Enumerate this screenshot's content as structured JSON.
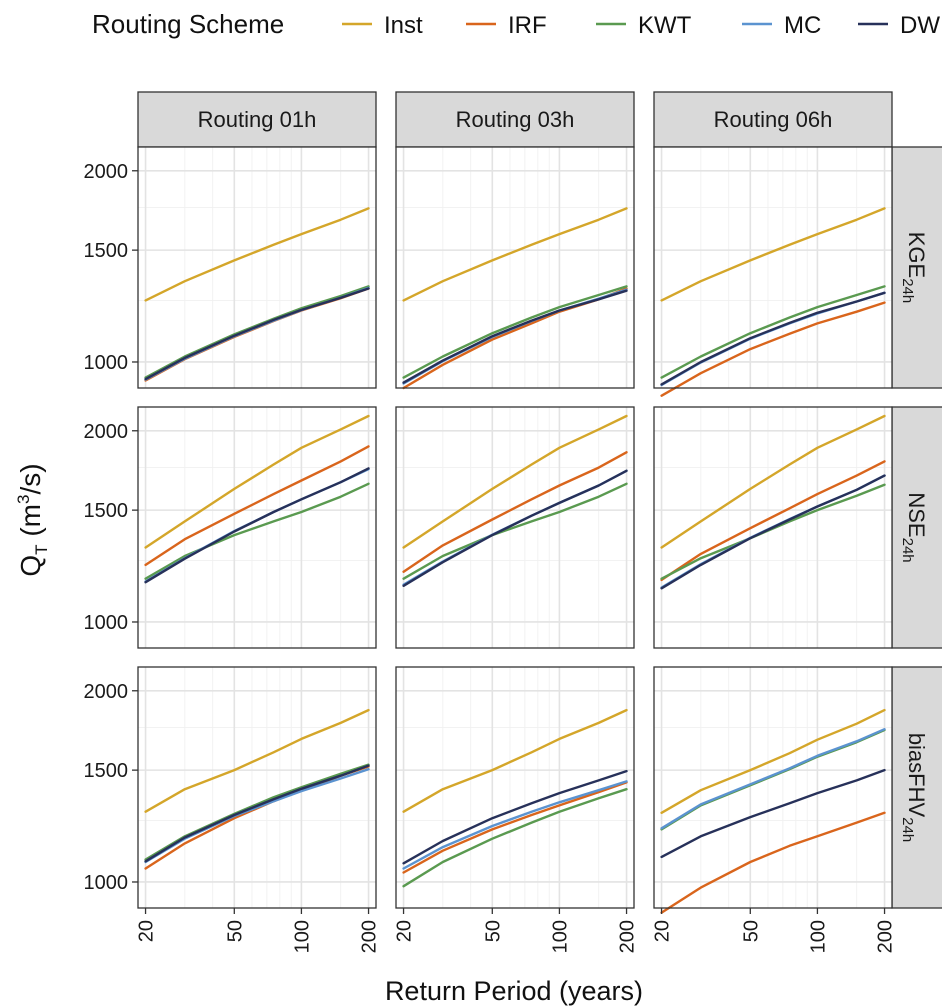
{
  "chart_data": {
    "type": "line",
    "legend": {
      "title": "Routing Scheme",
      "placement": "top",
      "entries": [
        {
          "name": "Inst",
          "color": "#D4A62A"
        },
        {
          "name": "IRF",
          "color": "#D9651C"
        },
        {
          "name": "KWT",
          "color": "#5A9A50"
        },
        {
          "name": "MC",
          "color": "#5B93D0"
        },
        {
          "name": "DW",
          "color": "#27315A"
        }
      ]
    },
    "xlabel": "Return Period (years)",
    "ylabel": "Q_T (m³/s)",
    "ylabel_main": "Q",
    "ylabel_sub": "T",
    "ylabel_rest": " (m",
    "ylabel_sup": "3",
    "ylabel_end": "/s)",
    "x_scale": "log",
    "y_scale": "log",
    "x_ticks": [
      20,
      50,
      100,
      200
    ],
    "x_tick_labels": [
      "20",
      "50",
      "100",
      "200"
    ],
    "y_ticks": [
      1000,
      1500,
      2000
    ],
    "y_tick_labels": [
      "1000",
      "1500",
      "2000"
    ],
    "xlim": [
      18.5,
      216
    ],
    "rows_ylim": [
      [
        910,
        2180
      ],
      [
        910,
        2180
      ],
      [
        910,
        2180
      ]
    ],
    "grid": true,
    "x_points": [
      20,
      30,
      50,
      75,
      100,
      150,
      200
    ],
    "columns": [
      "Routing 01h",
      "Routing 03h",
      "Routing 06h"
    ],
    "rows": [
      {
        "main": "KGE",
        "sub": "24h"
      },
      {
        "main": "NSE",
        "sub": "24h"
      },
      {
        "main": "biasFHV",
        "sub": "24h"
      }
    ],
    "panels": [
      {
        "row": 0,
        "col": 0,
        "series": [
          {
            "name": "Inst",
            "values": [
              1250,
              1340,
              1445,
              1530,
              1590,
              1675,
              1745
            ]
          },
          {
            "name": "IRF",
            "values": [
              935,
              1010,
              1095,
              1160,
              1205,
              1260,
              1305
            ]
          },
          {
            "name": "KWT",
            "values": [
              945,
              1020,
              1105,
              1170,
              1215,
              1270,
              1315
            ]
          },
          {
            "name": "MC",
            "values": [
              938,
              1012,
              1098,
              1162,
              1207,
              1263,
              1308
            ]
          },
          {
            "name": "DW",
            "values": [
              940,
              1015,
              1100,
              1165,
              1208,
              1262,
              1305
            ]
          }
        ]
      },
      {
        "row": 0,
        "col": 1,
        "series": [
          {
            "name": "Inst",
            "values": [
              1250,
              1340,
              1445,
              1530,
              1590,
              1675,
              1745
            ]
          },
          {
            "name": "IRF",
            "values": [
              910,
              990,
              1085,
              1150,
              1200,
              1255,
              1305
            ]
          },
          {
            "name": "KWT",
            "values": [
              945,
              1020,
              1110,
              1175,
              1220,
              1275,
              1315
            ]
          },
          {
            "name": "MC",
            "values": [
              925,
              1003,
              1095,
              1160,
              1205,
              1258,
              1300
            ]
          },
          {
            "name": "DW",
            "values": [
              928,
              1005,
              1098,
              1162,
              1205,
              1255,
              1295
            ]
          }
        ]
      },
      {
        "row": 0,
        "col": 2,
        "series": [
          {
            "name": "Inst",
            "values": [
              1250,
              1340,
              1445,
              1530,
              1590,
              1675,
              1745
            ]
          },
          {
            "name": "IRF",
            "values": [
              885,
              960,
              1048,
              1108,
              1150,
              1200,
              1240
            ]
          },
          {
            "name": "KWT",
            "values": [
              945,
              1020,
              1110,
              1175,
              1220,
              1275,
              1315
            ]
          },
          {
            "name": "MC",
            "values": [
              920,
              998,
              1088,
              1150,
              1192,
              1245,
              1285
            ]
          },
          {
            "name": "DW",
            "values": [
              922,
              1000,
              1090,
              1152,
              1195,
              1245,
              1285
            ]
          }
        ]
      },
      {
        "row": 1,
        "col": 0,
        "series": [
          {
            "name": "Inst",
            "values": [
              1310,
              1440,
              1620,
              1770,
              1880,
              2010,
              2110
            ]
          },
          {
            "name": "IRF",
            "values": [
              1230,
              1350,
              1480,
              1590,
              1670,
              1790,
              1890
            ]
          },
          {
            "name": "KWT",
            "values": [
              1170,
              1270,
              1370,
              1440,
              1490,
              1575,
              1650
            ]
          },
          {
            "name": "MC",
            "values": [
              1158,
              1260,
              1390,
              1490,
              1560,
              1660,
              1740
            ]
          },
          {
            "name": "DW",
            "values": [
              1155,
              1258,
              1388,
              1490,
              1560,
              1660,
              1745
            ]
          }
        ]
      },
      {
        "row": 1,
        "col": 1,
        "series": [
          {
            "name": "Inst",
            "values": [
              1310,
              1440,
              1620,
              1770,
              1880,
              2010,
              2110
            ]
          },
          {
            "name": "IRF",
            "values": [
              1200,
              1320,
              1450,
              1560,
              1640,
              1750,
              1850
            ]
          },
          {
            "name": "KWT",
            "values": [
              1170,
              1270,
              1370,
              1440,
              1490,
              1575,
              1650
            ]
          },
          {
            "name": "MC",
            "values": [
              1145,
              1245,
              1372,
              1470,
              1540,
              1640,
              1730
            ]
          },
          {
            "name": "DW",
            "values": [
              1140,
              1242,
              1370,
              1470,
              1540,
              1640,
              1730
            ]
          }
        ]
      },
      {
        "row": 1,
        "col": 2,
        "series": [
          {
            "name": "Inst",
            "values": [
              1310,
              1440,
              1620,
              1770,
              1880,
              2010,
              2110
            ]
          },
          {
            "name": "IRF",
            "values": [
              1165,
              1280,
              1405,
              1510,
              1590,
              1700,
              1790
            ]
          },
          {
            "name": "KWT",
            "values": [
              1170,
              1260,
              1355,
              1440,
              1500,
              1580,
              1645
            ]
          },
          {
            "name": "MC",
            "values": [
              1133,
              1233,
              1357,
              1452,
              1520,
              1615,
              1700
            ]
          },
          {
            "name": "DW",
            "values": [
              1130,
              1230,
              1355,
              1450,
              1520,
              1615,
              1700
            ]
          }
        ]
      },
      {
        "row": 2,
        "col": 0,
        "series": [
          {
            "name": "Inst",
            "values": [
              1290,
              1400,
              1500,
              1600,
              1680,
              1780,
              1865
            ]
          },
          {
            "name": "IRF",
            "values": [
              1050,
              1150,
              1260,
              1340,
              1395,
              1470,
              1520
            ]
          },
          {
            "name": "KWT",
            "values": [
              1085,
              1180,
              1280,
              1360,
              1410,
              1480,
              1530
            ]
          },
          {
            "name": "MC",
            "values": [
              1075,
              1170,
              1270,
              1340,
              1390,
              1455,
              1505
            ]
          },
          {
            "name": "DW",
            "values": [
              1078,
              1175,
              1275,
              1350,
              1402,
              1470,
              1525
            ]
          }
        ]
      },
      {
        "row": 2,
        "col": 1,
        "series": [
          {
            "name": "Inst",
            "values": [
              1290,
              1400,
              1500,
              1600,
              1680,
              1780,
              1865
            ]
          },
          {
            "name": "IRF",
            "values": [
              1035,
              1120,
              1210,
              1275,
              1320,
              1385,
              1435
            ]
          },
          {
            "name": "KWT",
            "values": [
              985,
              1075,
              1170,
              1240,
              1290,
              1355,
              1400
            ]
          },
          {
            "name": "MC",
            "values": [
              1050,
              1135,
              1225,
              1290,
              1335,
              1395,
              1440
            ]
          },
          {
            "name": "DW",
            "values": [
              1070,
              1160,
              1260,
              1330,
              1380,
              1445,
              1495
            ]
          }
        ]
      },
      {
        "row": 2,
        "col": 2,
        "series": [
          {
            "name": "Inst",
            "values": [
              1285,
              1395,
              1500,
              1595,
              1675,
              1775,
              1865
            ]
          },
          {
            "name": "IRF",
            "values": [
              895,
              980,
              1075,
              1140,
              1180,
              1240,
              1285
            ]
          },
          {
            "name": "KWT",
            "values": [
              1210,
              1320,
              1420,
              1505,
              1575,
              1660,
              1735
            ]
          },
          {
            "name": "MC",
            "values": [
              1215,
              1325,
              1425,
              1510,
              1580,
              1665,
              1740
            ]
          },
          {
            "name": "DW",
            "values": [
              1095,
              1180,
              1265,
              1330,
              1380,
              1445,
              1500
            ]
          }
        ]
      }
    ]
  }
}
